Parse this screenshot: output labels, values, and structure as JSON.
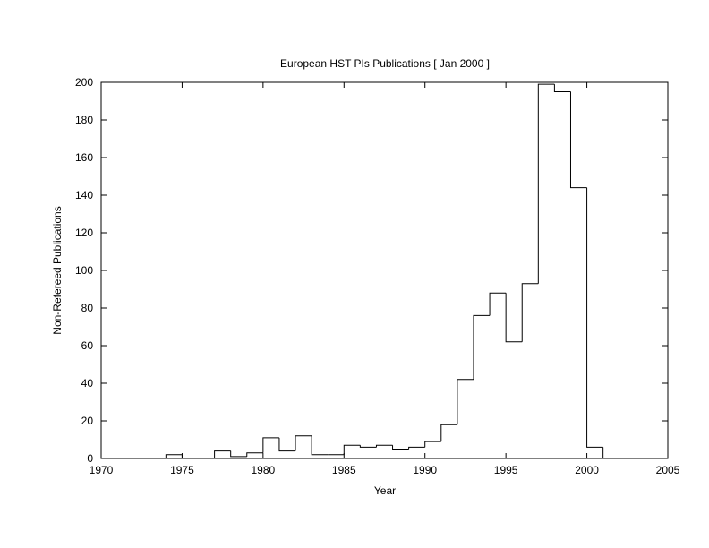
{
  "chart_data": {
    "type": "bar",
    "title": "European HST PIs Publications [ Jan 2000 ]",
    "xlabel": "Year",
    "ylabel": "Non-Refereed Publications",
    "xlim": [
      1970,
      2005
    ],
    "ylim": [
      0,
      200
    ],
    "xticks": [
      1970,
      1975,
      1980,
      1985,
      1990,
      1995,
      2000,
      2005
    ],
    "yticks": [
      0,
      20,
      40,
      60,
      80,
      100,
      120,
      140,
      160,
      180,
      200
    ],
    "grid": false,
    "style": "step histogram",
    "series": [
      {
        "x": [
          1974,
          1975,
          1976,
          1977,
          1978,
          1979,
          1980,
          1981,
          1982,
          1983,
          1984,
          1985,
          1986,
          1987,
          1988,
          1989,
          1990,
          1991,
          1992,
          1993,
          1994,
          1995,
          1996,
          1997,
          1998,
          1999,
          2000
        ],
        "values": [
          2,
          0,
          0,
          4,
          1,
          3,
          11,
          4,
          12,
          2,
          2,
          7,
          6,
          7,
          5,
          6,
          9,
          18,
          42,
          76,
          88,
          62,
          93,
          199,
          195,
          144,
          6
        ]
      }
    ],
    "colors": {
      "line": "#000000",
      "background": "#ffffff"
    }
  }
}
